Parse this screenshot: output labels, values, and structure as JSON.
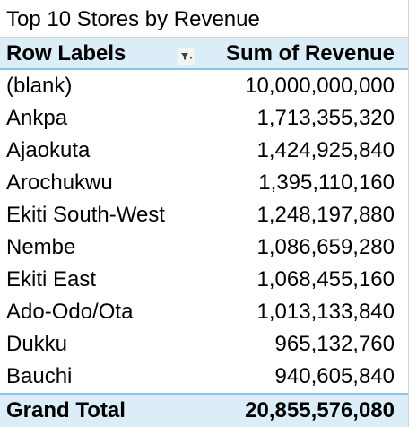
{
  "sheet": {
    "title": "Top 10 Stores by Revenue"
  },
  "pivot": {
    "header": {
      "row_labels": "Row Labels",
      "values_label": "Sum of Revenue",
      "filter_icon": "filter-dropdown-icon"
    },
    "rows": [
      {
        "label": "(blank)",
        "value": "10,000,000,000"
      },
      {
        "label": "Ankpa",
        "value": "1,713,355,320"
      },
      {
        "label": "Ajaokuta",
        "value": "1,424,925,840"
      },
      {
        "label": "Arochukwu",
        "value": "1,395,110,160"
      },
      {
        "label": "Ekiti South-West",
        "value": "1,248,197,880"
      },
      {
        "label": "Nembe",
        "value": "1,086,659,280"
      },
      {
        "label": "Ekiti East",
        "value": "1,068,455,160"
      },
      {
        "label": "Ado-Odo/Ota",
        "value": "1,013,133,840"
      },
      {
        "label": "Dukku",
        "value": "965,132,760"
      },
      {
        "label": "Bauchi",
        "value": "940,605,840"
      }
    ],
    "grand_total": {
      "label": "Grand Total",
      "value": "20,855,576,080"
    }
  },
  "colors": {
    "header_fill": "#dbeef8",
    "header_border": "#8cc4e4",
    "gridline": "#d4d4d4"
  }
}
